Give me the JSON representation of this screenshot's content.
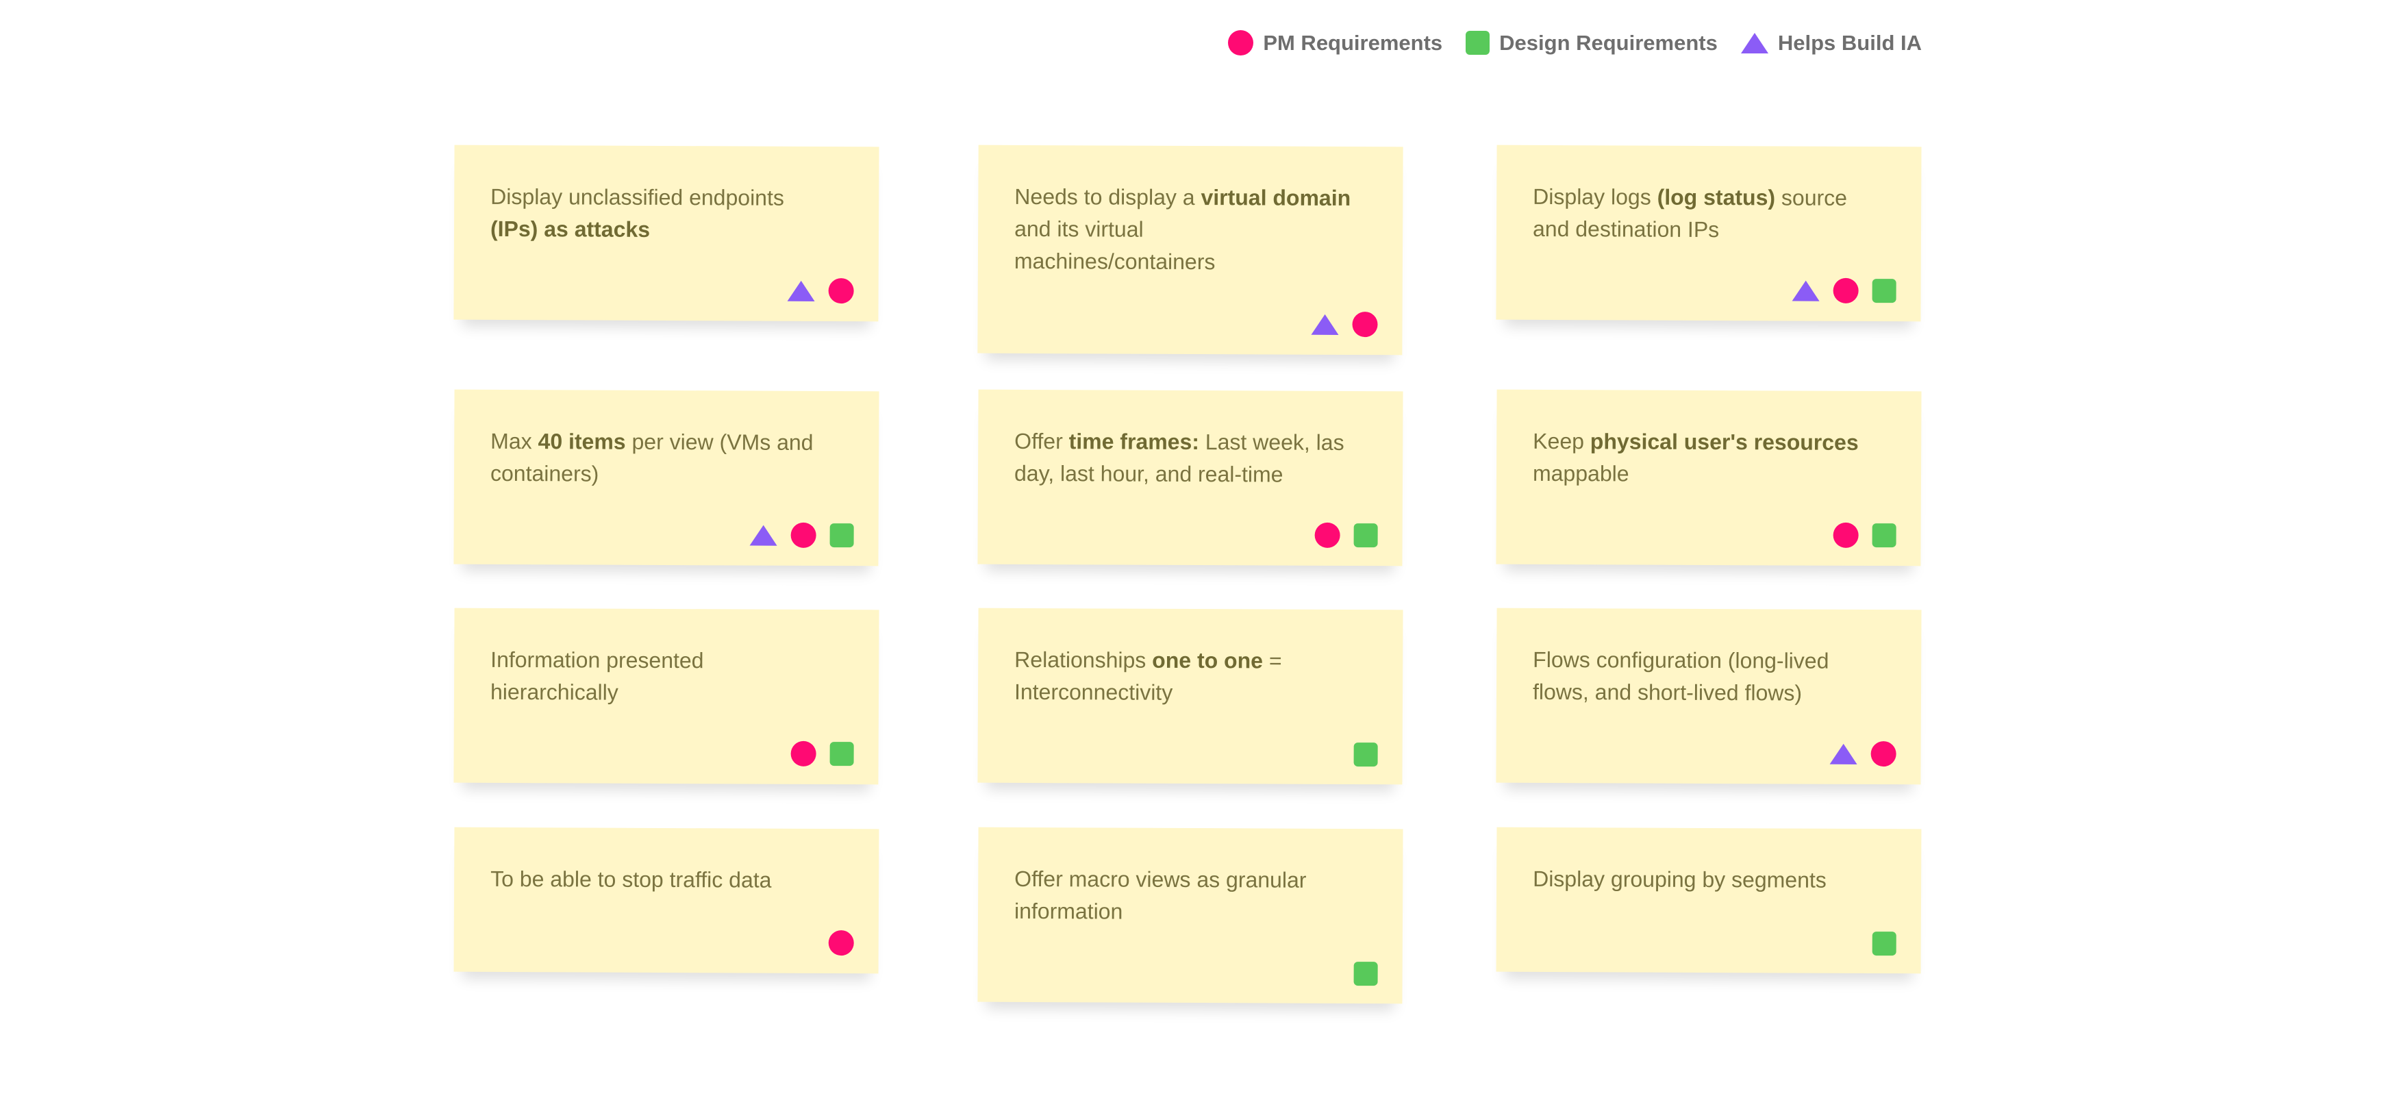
{
  "legend": [
    {
      "shape": "circle",
      "label": "PM Requirements",
      "color": "#ff0a73"
    },
    {
      "shape": "square",
      "label": "Design Requirements",
      "color": "#58c95a"
    },
    {
      "shape": "triangle",
      "label": "Helps Build IA",
      "color": "#8b5cf6"
    }
  ],
  "colors": {
    "note_background": "#fff6c8",
    "note_text": "#7a7340"
  },
  "notes": [
    {
      "lines": [
        [
          {
            "t": "Display unclassified endpoints"
          }
        ],
        [
          {
            "t": "(IPs) as attacks",
            "b": true
          }
        ]
      ],
      "tags": [
        "triangle",
        "circle"
      ]
    },
    {
      "lines": [
        [
          {
            "t": "Needs to display a "
          },
          {
            "t": "virtual domain",
            "b": true
          }
        ],
        [
          {
            "t": "and its virtual"
          }
        ],
        [
          {
            "t": "machines/containers"
          }
        ]
      ],
      "tags": [
        "triangle",
        "circle"
      ]
    },
    {
      "lines": [
        [
          {
            "t": "Display logs "
          },
          {
            "t": "(log status)",
            "b": true
          },
          {
            "t": " source"
          }
        ],
        [
          {
            "t": "and destination IPs"
          }
        ]
      ],
      "tags": [
        "triangle",
        "circle",
        "square"
      ]
    },
    {
      "lines": [
        [
          {
            "t": "Max "
          },
          {
            "t": "40 items",
            "b": true
          },
          {
            "t": " per view (VMs and"
          }
        ],
        [
          {
            "t": "containers)"
          }
        ]
      ],
      "tags": [
        "triangle",
        "circle",
        "square"
      ]
    },
    {
      "lines": [
        [
          {
            "t": "Offer "
          },
          {
            "t": "time frames:",
            "b": true
          },
          {
            "t": " Last week, las"
          }
        ],
        [
          {
            "t": "day, last hour, and real-time"
          }
        ]
      ],
      "tags": [
        "circle",
        "square"
      ]
    },
    {
      "lines": [
        [
          {
            "t": "Keep "
          },
          {
            "t": "physical user's resources",
            "b": true
          }
        ],
        [
          {
            "t": "mappable"
          }
        ]
      ],
      "tags": [
        "circle",
        "square"
      ]
    },
    {
      "lines": [
        [
          {
            "t": "Information presented"
          }
        ],
        [
          {
            "t": "hierarchically"
          }
        ]
      ],
      "tags": [
        "circle",
        "square"
      ]
    },
    {
      "lines": [
        [
          {
            "t": "Relationships "
          },
          {
            "t": "one to one",
            "b": true
          },
          {
            "t": " ="
          }
        ],
        [
          {
            "t": "Interconnectivity"
          }
        ]
      ],
      "tags": [
        "square"
      ]
    },
    {
      "lines": [
        [
          {
            "t": "Flows configuration (long-lived"
          }
        ],
        [
          {
            "t": "flows, and short-lived flows)"
          }
        ]
      ],
      "tags": [
        "triangle",
        "circle"
      ]
    },
    {
      "lines": [
        [
          {
            "t": "To be able to stop traffic data"
          }
        ]
      ],
      "tags": [
        "circle"
      ]
    },
    {
      "lines": [
        [
          {
            "t": "Offer macro views as granular"
          }
        ],
        [
          {
            "t": "information"
          }
        ]
      ],
      "tags": [
        "square"
      ]
    },
    {
      "lines": [
        [
          {
            "t": "Display grouping by segments"
          }
        ]
      ],
      "tags": [
        "square"
      ]
    }
  ]
}
